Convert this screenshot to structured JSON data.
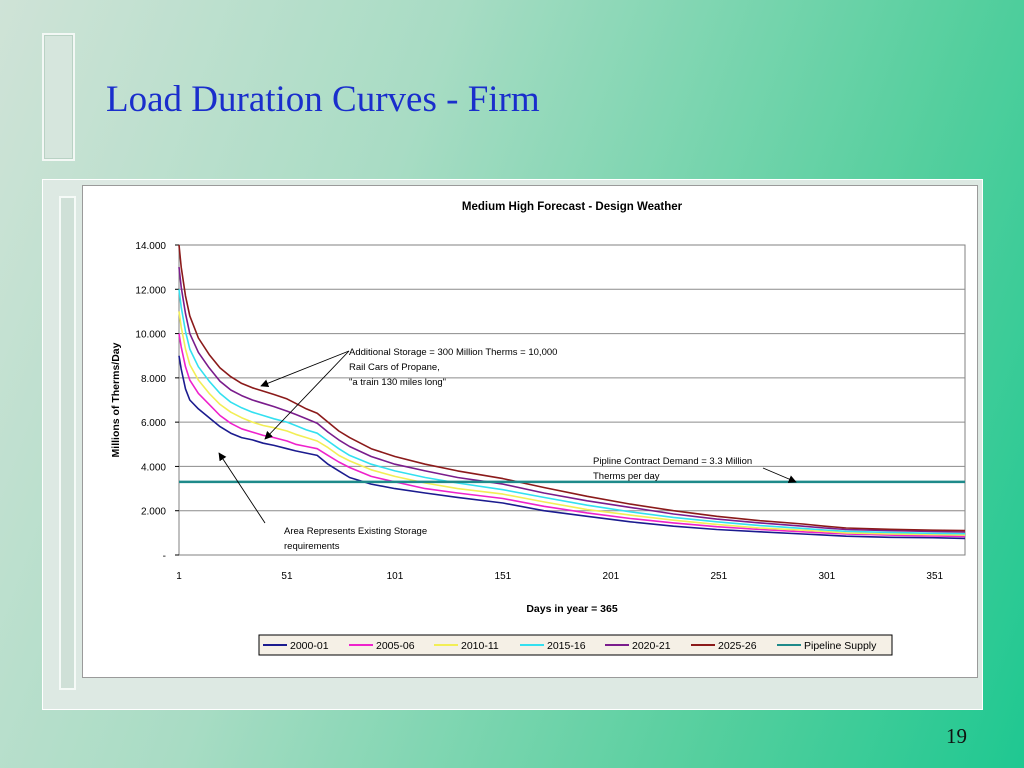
{
  "slide": {
    "title": "Load Duration Curves - Firm",
    "page_number": "19"
  },
  "chart_data": {
    "type": "line",
    "title": "Medium High Forecast - Design Weather",
    "xlabel": "Days in year = 365",
    "ylabel": "Millions of Therms/Day",
    "xlim": [
      1,
      365
    ],
    "ylim": [
      0,
      14
    ],
    "x_ticks": [
      1,
      51,
      101,
      151,
      201,
      251,
      301,
      351
    ],
    "y_ticks": [
      0,
      2,
      4,
      6,
      8,
      10,
      12,
      14
    ],
    "y_tick_labels": [
      "-",
      "2.000",
      "4.000",
      "6.000",
      "8.000",
      "10.000",
      "12.000",
      "14.000"
    ],
    "grid": "horizontal",
    "legend_position": "bottom",
    "series": [
      {
        "name": "2000-01",
        "color": "#1b1b8f",
        "x": [
          1,
          2,
          4,
          6,
          10,
          15,
          20,
          25,
          30,
          35,
          40,
          45,
          51,
          55,
          60,
          65,
          70,
          75,
          80,
          90,
          101,
          115,
          130,
          151,
          170,
          190,
          210,
          230,
          250,
          270,
          290,
          300,
          310,
          330,
          350,
          365
        ],
        "y": [
          9.0,
          8.4,
          7.5,
          7.0,
          6.6,
          6.2,
          5.8,
          5.5,
          5.3,
          5.2,
          5.05,
          4.95,
          4.8,
          4.7,
          4.6,
          4.5,
          4.1,
          3.8,
          3.5,
          3.2,
          3.0,
          2.8,
          2.6,
          2.35,
          2.0,
          1.75,
          1.5,
          1.3,
          1.15,
          1.05,
          0.95,
          0.9,
          0.85,
          0.8,
          0.78,
          0.75
        ]
      },
      {
        "name": "2005-06",
        "color": "#ee22cc",
        "x": [
          1,
          2,
          4,
          6,
          10,
          15,
          20,
          25,
          30,
          35,
          40,
          45,
          51,
          55,
          60,
          65,
          70,
          75,
          80,
          90,
          101,
          115,
          130,
          151,
          170,
          190,
          210,
          230,
          250,
          270,
          290,
          300,
          310,
          330,
          350,
          365
        ],
        "y": [
          10.0,
          9.4,
          8.5,
          7.9,
          7.3,
          6.8,
          6.3,
          5.95,
          5.7,
          5.55,
          5.4,
          5.3,
          5.15,
          5.0,
          4.9,
          4.8,
          4.5,
          4.2,
          3.95,
          3.55,
          3.3,
          3.0,
          2.8,
          2.55,
          2.2,
          1.9,
          1.65,
          1.45,
          1.28,
          1.15,
          1.05,
          1.0,
          0.95,
          0.9,
          0.86,
          0.84
        ]
      },
      {
        "name": "2010-11",
        "color": "#f2ee55",
        "x": [
          1,
          2,
          4,
          6,
          10,
          15,
          20,
          25,
          30,
          35,
          40,
          45,
          51,
          55,
          60,
          65,
          70,
          75,
          80,
          90,
          101,
          115,
          130,
          151,
          170,
          190,
          210,
          230,
          250,
          270,
          290,
          300,
          310,
          330,
          350,
          365
        ],
        "y": [
          11.0,
          10.3,
          9.3,
          8.6,
          7.9,
          7.3,
          6.8,
          6.45,
          6.2,
          6.0,
          5.85,
          5.75,
          5.6,
          5.45,
          5.3,
          5.15,
          4.85,
          4.5,
          4.25,
          3.85,
          3.55,
          3.25,
          3.0,
          2.75,
          2.4,
          2.05,
          1.8,
          1.57,
          1.38,
          1.22,
          1.12,
          1.06,
          1.0,
          0.95,
          0.92,
          0.9
        ]
      },
      {
        "name": "2015-16",
        "color": "#33e0f0",
        "x": [
          1,
          2,
          4,
          6,
          10,
          15,
          20,
          25,
          30,
          35,
          40,
          45,
          51,
          55,
          60,
          65,
          70,
          75,
          80,
          90,
          101,
          115,
          130,
          151,
          170,
          190,
          210,
          230,
          250,
          270,
          290,
          300,
          310,
          330,
          350,
          365
        ],
        "y": [
          12.0,
          11.2,
          10.1,
          9.3,
          8.5,
          7.85,
          7.3,
          6.9,
          6.65,
          6.45,
          6.3,
          6.15,
          6.0,
          5.85,
          5.65,
          5.5,
          5.15,
          4.8,
          4.5,
          4.1,
          3.8,
          3.5,
          3.25,
          2.95,
          2.6,
          2.25,
          1.95,
          1.7,
          1.5,
          1.33,
          1.2,
          1.13,
          1.07,
          1.02,
          0.98,
          0.96
        ]
      },
      {
        "name": "2020-21",
        "color": "#7a1c8c",
        "x": [
          1,
          2,
          4,
          6,
          10,
          15,
          20,
          25,
          30,
          35,
          40,
          45,
          51,
          55,
          60,
          65,
          70,
          75,
          80,
          90,
          101,
          115,
          130,
          151,
          170,
          190,
          210,
          230,
          250,
          270,
          290,
          300,
          310,
          330,
          350,
          365
        ],
        "y": [
          13.0,
          12.1,
          10.9,
          10.0,
          9.15,
          8.45,
          7.85,
          7.45,
          7.2,
          7.0,
          6.85,
          6.7,
          6.5,
          6.35,
          6.15,
          5.95,
          5.55,
          5.2,
          4.9,
          4.45,
          4.1,
          3.8,
          3.5,
          3.2,
          2.8,
          2.45,
          2.15,
          1.85,
          1.62,
          1.45,
          1.3,
          1.22,
          1.15,
          1.1,
          1.06,
          1.04
        ]
      },
      {
        "name": "2025-26",
        "color": "#8b1a1a",
        "x": [
          1,
          2,
          4,
          6,
          10,
          15,
          20,
          25,
          30,
          35,
          40,
          45,
          51,
          55,
          60,
          65,
          70,
          75,
          80,
          90,
          101,
          115,
          130,
          151,
          170,
          190,
          210,
          230,
          250,
          270,
          290,
          300,
          310,
          330,
          350,
          365
        ],
        "y": [
          14.0,
          13.0,
          11.7,
          10.8,
          9.8,
          9.05,
          8.45,
          8.05,
          7.75,
          7.55,
          7.4,
          7.25,
          7.05,
          6.85,
          6.6,
          6.4,
          6.0,
          5.6,
          5.3,
          4.8,
          4.45,
          4.1,
          3.8,
          3.45,
          3.05,
          2.65,
          2.3,
          2.0,
          1.75,
          1.55,
          1.4,
          1.3,
          1.22,
          1.16,
          1.12,
          1.1
        ]
      },
      {
        "name": "Pipeline Supply",
        "color": "#1e8a8a",
        "x": [
          1,
          365
        ],
        "y": [
          3.3,
          3.3
        ]
      }
    ],
    "annotations": [
      {
        "lines": [
          "Additional Storage = 300 Million Therms = 10,000",
          "Rail Cars of Propane,",
          "\"a train 130 miles long\""
        ]
      },
      {
        "lines": [
          "Pipline Contract Demand = 3.3 Million",
          "Therms per day"
        ]
      },
      {
        "lines": [
          "Area Represents Existing Storage",
          "requirements"
        ]
      }
    ]
  }
}
